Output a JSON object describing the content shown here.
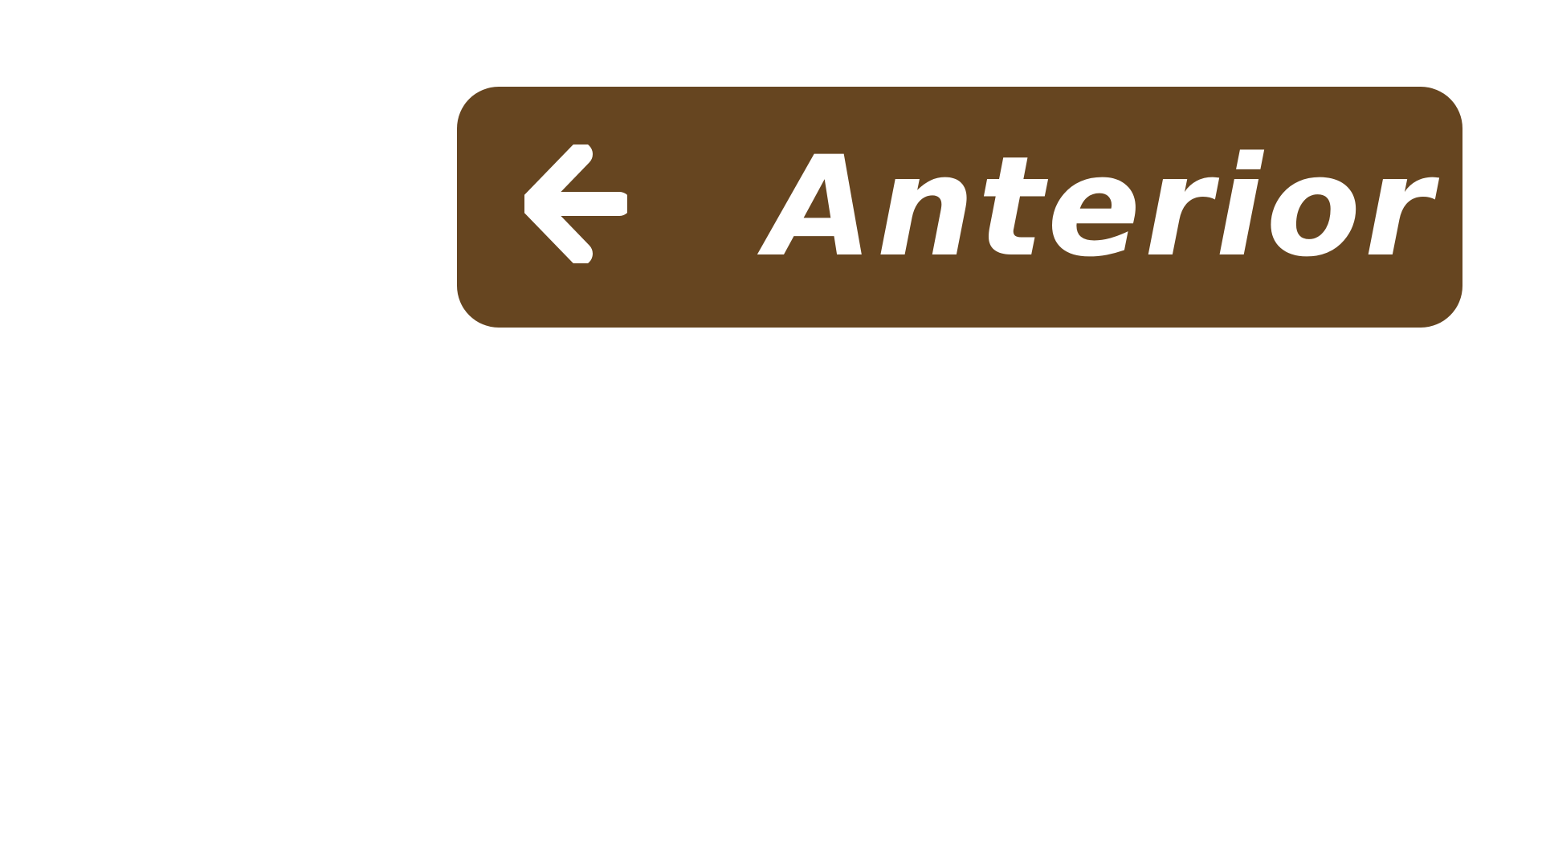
{
  "nav": {
    "previous": {
      "label": "Anterior",
      "icon": "arrow-left-icon",
      "background_color": "#664520",
      "text_color": "#ffffff"
    }
  },
  "page": {
    "background_color": "#ffffff"
  }
}
